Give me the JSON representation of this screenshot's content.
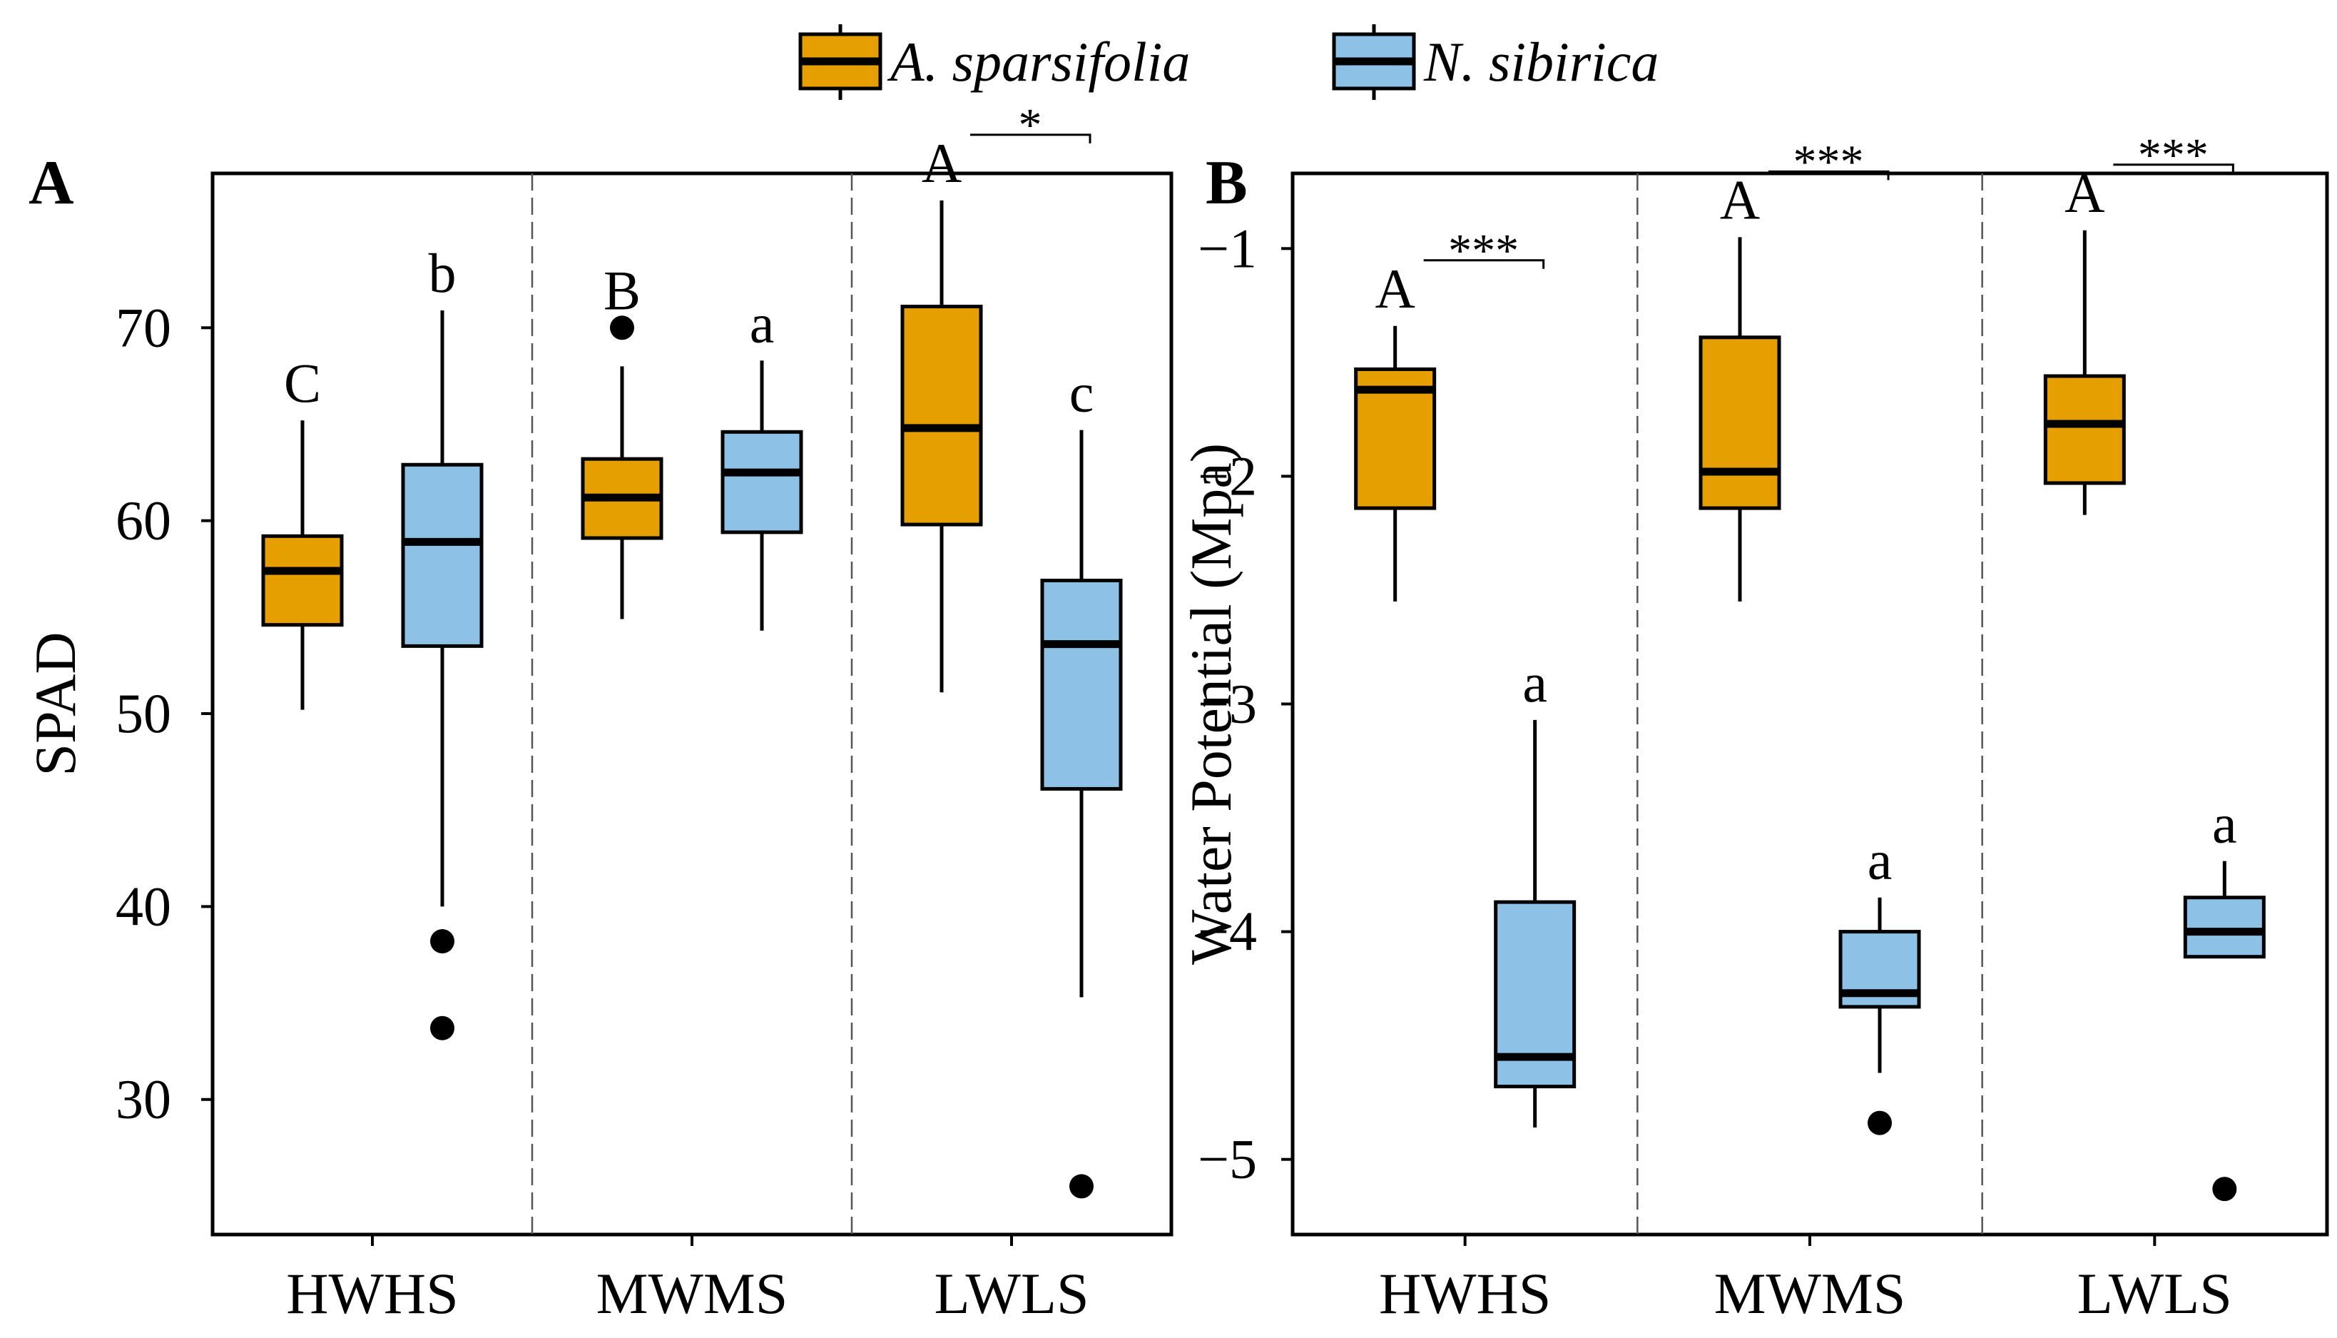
{
  "legend": {
    "items": [
      {
        "name": "A. sparsifolia",
        "color": "#E69F00"
      },
      {
        "name": "N. sibirica",
        "color": "#8EC1E6"
      }
    ]
  },
  "chart_data": [
    {
      "type": "boxplot",
      "panel": "A",
      "ylabel": "SPAD",
      "xlabel": "",
      "categories": [
        "HWHS",
        "MWMS",
        "LWLS"
      ],
      "ylim": [
        23,
        78
      ],
      "yticks": [
        30,
        40,
        50,
        60,
        70
      ],
      "series": [
        {
          "name": "A. sparsifolia",
          "color": "#E69F00",
          "boxes": [
            {
              "category": "HWHS",
              "min": 50.2,
              "q1": 54.6,
              "median": 57.4,
              "q3": 59.2,
              "max": 65.2,
              "outliers": [],
              "letter": "C"
            },
            {
              "category": "MWMS",
              "min": 54.9,
              "q1": 59.1,
              "median": 61.2,
              "q3": 63.2,
              "max": 68.0,
              "outliers": [
                70.0
              ],
              "letter": "B"
            },
            {
              "category": "LWLS",
              "min": 51.1,
              "q1": 59.8,
              "median": 64.8,
              "q3": 71.1,
              "max": 76.6,
              "outliers": [],
              "letter": "A"
            }
          ]
        },
        {
          "name": "N. sibirica",
          "color": "#8EC1E6",
          "boxes": [
            {
              "category": "HWHS",
              "min": 40.0,
              "q1": 53.5,
              "median": 58.9,
              "q3": 62.9,
              "max": 70.9,
              "outliers": [
                38.2,
                33.7
              ],
              "letter": "b"
            },
            {
              "category": "MWMS",
              "min": 54.3,
              "q1": 59.4,
              "median": 62.5,
              "q3": 64.6,
              "max": 68.3,
              "outliers": [],
              "letter": "a"
            },
            {
              "category": "LWLS",
              "min": 35.3,
              "q1": 46.1,
              "median": 53.6,
              "q3": 56.9,
              "max": 64.7,
              "outliers": [
                25.5
              ],
              "letter": "c"
            }
          ]
        }
      ],
      "significance": [
        {
          "category": "LWLS",
          "label": "*"
        }
      ]
    },
    {
      "type": "boxplot",
      "panel": "B",
      "ylabel": "Water Potential (Mpa)",
      "xlabel": "",
      "categories": [
        "HWHS",
        "MWMS",
        "LWLS"
      ],
      "ylim": [
        -5.33,
        -0.67
      ],
      "yticks": [
        -5,
        -4,
        -3,
        -2,
        -1
      ],
      "ytick_labels": [
        "−5",
        "−4",
        "−3",
        "−2",
        "−1"
      ],
      "series": [
        {
          "name": "A. sparsifolia",
          "color": "#E69F00",
          "boxes": [
            {
              "category": "HWHS",
              "min": -2.55,
              "q1": -2.14,
              "median": -1.62,
              "q3": -1.53,
              "max": -1.34,
              "outliers": [],
              "letter": "A"
            },
            {
              "category": "MWMS",
              "min": -2.55,
              "q1": -2.14,
              "median": -1.98,
              "q3": -1.39,
              "max": -0.95,
              "outliers": [],
              "letter": "A"
            },
            {
              "category": "LWLS",
              "min": -2.17,
              "q1": -2.03,
              "median": -1.77,
              "q3": -1.56,
              "max": -0.92,
              "outliers": [],
              "letter": "A"
            }
          ]
        },
        {
          "name": "N. sibirica",
          "color": "#8EC1E6",
          "boxes": [
            {
              "category": "HWHS",
              "min": -4.86,
              "q1": -4.68,
              "median": -4.55,
              "q3": -3.87,
              "max": -3.07,
              "outliers": [],
              "letter": "a"
            },
            {
              "category": "MWMS",
              "min": -4.62,
              "q1": -4.33,
              "median": -4.27,
              "q3": -4.0,
              "max": -3.85,
              "outliers": [
                -4.84
              ],
              "letter": "a"
            },
            {
              "category": "LWLS",
              "min": -4.11,
              "q1": -4.11,
              "median": -4.0,
              "q3": -3.85,
              "max": -3.69,
              "outliers": [
                -5.13
              ],
              "letter": "a"
            }
          ]
        }
      ],
      "significance": [
        {
          "category": "HWHS",
          "label": "***"
        },
        {
          "category": "MWMS",
          "label": "***"
        },
        {
          "category": "LWLS",
          "label": "***"
        }
      ]
    }
  ]
}
